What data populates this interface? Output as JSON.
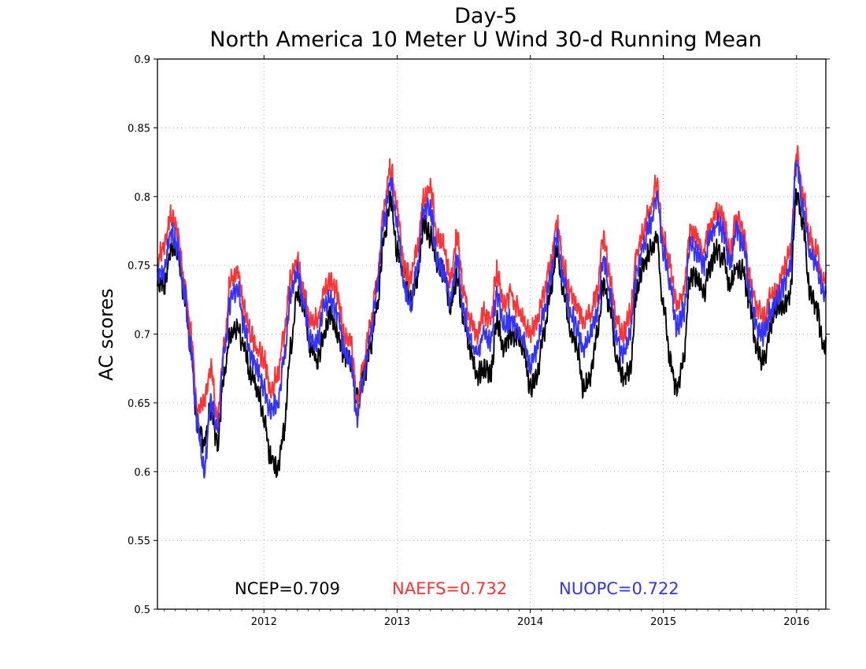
{
  "chart_data": {
    "type": "line",
    "title": "Day-5",
    "subtitle": "North America 10 Meter U Wind 30-d Running Mean",
    "xlabel": "",
    "ylabel": "AC scores",
    "xlim": [
      2011.2,
      2016.22
    ],
    "ylim": [
      0.5,
      0.9
    ],
    "yticks": [
      "0.5",
      "0.55",
      "0.6",
      "0.65",
      "0.7",
      "0.75",
      "0.8",
      "0.85",
      "0.9"
    ],
    "xticks": [
      "2012",
      "2013",
      "2014",
      "2015",
      "2016"
    ],
    "grid": true,
    "legend_position": "bottom",
    "x_anchor": [
      2011.2,
      2011.25,
      2011.3,
      2011.35,
      2011.4,
      2011.45,
      2011.5,
      2011.55,
      2011.6,
      2011.65,
      2011.7,
      2011.75,
      2011.8,
      2011.85,
      2011.9,
      2011.95,
      2012.0,
      2012.05,
      2012.1,
      2012.15,
      2012.2,
      2012.25,
      2012.3,
      2012.35,
      2012.4,
      2012.45,
      2012.5,
      2012.55,
      2012.6,
      2012.65,
      2012.7,
      2012.75,
      2012.8,
      2012.85,
      2012.9,
      2012.95,
      2013.0,
      2013.05,
      2013.1,
      2013.15,
      2013.2,
      2013.25,
      2013.3,
      2013.35,
      2013.4,
      2013.45,
      2013.5,
      2013.55,
      2013.6,
      2013.65,
      2013.7,
      2013.75,
      2013.8,
      2013.85,
      2013.9,
      2013.95,
      2014.0,
      2014.05,
      2014.1,
      2014.15,
      2014.2,
      2014.25,
      2014.3,
      2014.35,
      2014.4,
      2014.45,
      2014.5,
      2014.55,
      2014.6,
      2014.65,
      2014.7,
      2014.75,
      2014.8,
      2014.85,
      2014.9,
      2014.95,
      2015.0,
      2015.05,
      2015.1,
      2015.15,
      2015.2,
      2015.25,
      2015.3,
      2015.35,
      2015.4,
      2015.45,
      2015.5,
      2015.55,
      2015.6,
      2015.65,
      2015.7,
      2015.75,
      2015.8,
      2015.85,
      2015.9,
      2015.95,
      2016.0,
      2016.05,
      2016.1,
      2016.15,
      2016.2
    ],
    "series": [
      {
        "name": "NCEP",
        "legend_label": "NCEP=0.709",
        "color": "#000000",
        "values": [
          0.74,
          0.735,
          0.76,
          0.76,
          0.73,
          0.69,
          0.635,
          0.62,
          0.645,
          0.62,
          0.67,
          0.7,
          0.705,
          0.69,
          0.67,
          0.66,
          0.64,
          0.61,
          0.6,
          0.63,
          0.69,
          0.73,
          0.72,
          0.69,
          0.68,
          0.7,
          0.715,
          0.7,
          0.685,
          0.68,
          0.655,
          0.67,
          0.69,
          0.72,
          0.77,
          0.8,
          0.76,
          0.745,
          0.725,
          0.74,
          0.78,
          0.77,
          0.75,
          0.745,
          0.72,
          0.74,
          0.71,
          0.69,
          0.67,
          0.675,
          0.67,
          0.71,
          0.69,
          0.7,
          0.7,
          0.69,
          0.66,
          0.67,
          0.7,
          0.73,
          0.76,
          0.73,
          0.7,
          0.69,
          0.66,
          0.67,
          0.7,
          0.735,
          0.72,
          0.68,
          0.67,
          0.675,
          0.73,
          0.75,
          0.76,
          0.77,
          0.72,
          0.68,
          0.66,
          0.68,
          0.74,
          0.74,
          0.73,
          0.75,
          0.76,
          0.755,
          0.735,
          0.75,
          0.745,
          0.72,
          0.69,
          0.68,
          0.7,
          0.72,
          0.72,
          0.73,
          0.8,
          0.78,
          0.73,
          0.72,
          0.69
        ]
      },
      {
        "name": "NAEFS",
        "legend_label": "NAEFS=0.732",
        "color": "#ff3333",
        "values": [
          0.755,
          0.765,
          0.785,
          0.775,
          0.74,
          0.7,
          0.645,
          0.65,
          0.675,
          0.64,
          0.69,
          0.74,
          0.745,
          0.72,
          0.7,
          0.69,
          0.68,
          0.66,
          0.67,
          0.7,
          0.74,
          0.755,
          0.73,
          0.71,
          0.71,
          0.73,
          0.74,
          0.73,
          0.7,
          0.695,
          0.65,
          0.68,
          0.71,
          0.74,
          0.79,
          0.82,
          0.79,
          0.75,
          0.74,
          0.76,
          0.8,
          0.805,
          0.77,
          0.765,
          0.74,
          0.77,
          0.73,
          0.71,
          0.7,
          0.715,
          0.71,
          0.745,
          0.72,
          0.73,
          0.72,
          0.71,
          0.7,
          0.71,
          0.73,
          0.75,
          0.78,
          0.75,
          0.73,
          0.72,
          0.71,
          0.715,
          0.73,
          0.77,
          0.74,
          0.71,
          0.7,
          0.715,
          0.76,
          0.775,
          0.79,
          0.81,
          0.77,
          0.75,
          0.72,
          0.73,
          0.775,
          0.77,
          0.76,
          0.78,
          0.79,
          0.785,
          0.76,
          0.785,
          0.775,
          0.74,
          0.72,
          0.71,
          0.725,
          0.73,
          0.745,
          0.76,
          0.83,
          0.8,
          0.77,
          0.76,
          0.74
        ]
      },
      {
        "name": "NUOPC",
        "legend_label": "NUOPC=0.722",
        "color": "#3333ff",
        "values": [
          0.745,
          0.745,
          0.775,
          0.765,
          0.73,
          0.69,
          0.635,
          0.6,
          0.65,
          0.63,
          0.685,
          0.725,
          0.735,
          0.705,
          0.685,
          0.675,
          0.66,
          0.645,
          0.65,
          0.68,
          0.73,
          0.745,
          0.72,
          0.695,
          0.695,
          0.72,
          0.725,
          0.715,
          0.69,
          0.68,
          0.64,
          0.67,
          0.7,
          0.735,
          0.78,
          0.81,
          0.78,
          0.735,
          0.72,
          0.75,
          0.79,
          0.79,
          0.755,
          0.745,
          0.725,
          0.755,
          0.715,
          0.695,
          0.685,
          0.7,
          0.695,
          0.73,
          0.705,
          0.71,
          0.705,
          0.695,
          0.675,
          0.69,
          0.715,
          0.74,
          0.77,
          0.74,
          0.715,
          0.705,
          0.69,
          0.7,
          0.715,
          0.755,
          0.73,
          0.695,
          0.685,
          0.7,
          0.745,
          0.765,
          0.78,
          0.8,
          0.76,
          0.735,
          0.705,
          0.715,
          0.765,
          0.76,
          0.75,
          0.77,
          0.78,
          0.775,
          0.75,
          0.775,
          0.765,
          0.73,
          0.705,
          0.7,
          0.715,
          0.725,
          0.735,
          0.75,
          0.825,
          0.79,
          0.76,
          0.75,
          0.73
        ]
      }
    ]
  }
}
